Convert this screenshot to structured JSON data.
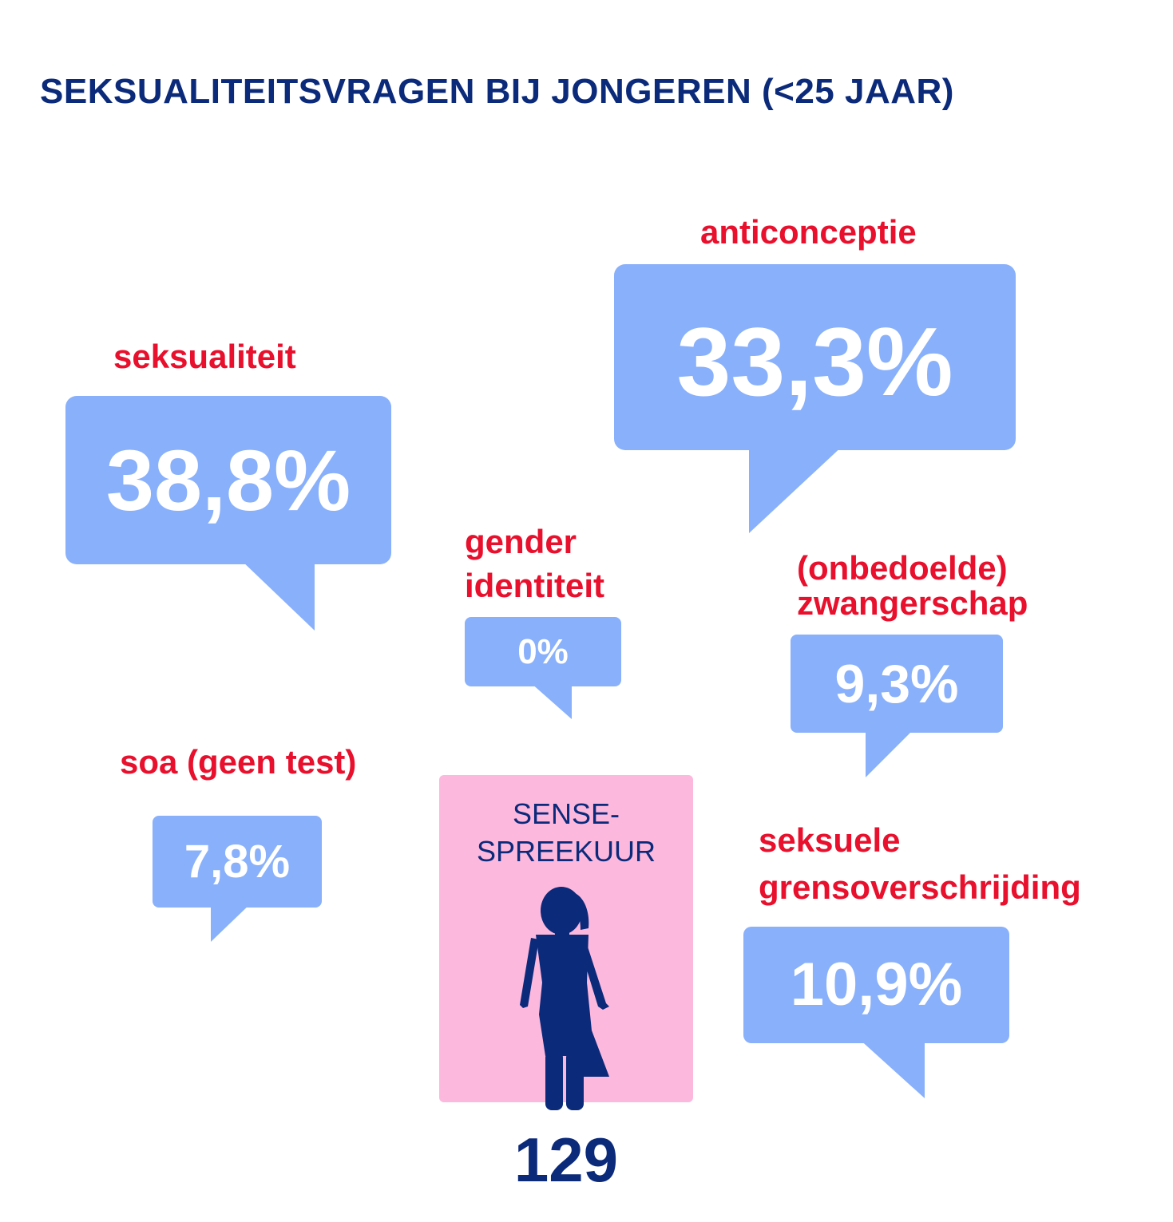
{
  "title": "SEKSUALITEITSVRAGEN BIJ JONGEREN (<25 JAAR)",
  "colors": {
    "title": "#0b2a7a",
    "label": "#e8102c",
    "bubble": "#89b0fb",
    "bubble_text": "#ffffff",
    "sense_box": "#fdb8dd"
  },
  "topics": {
    "seksualiteit": {
      "label": "seksualiteit",
      "value": "38,8%"
    },
    "anticonceptie": {
      "label": "anticonceptie",
      "value": "33,3%"
    },
    "gender_identiteit": {
      "label_line1": "gender",
      "label_line2": "identiteit",
      "value": "0%"
    },
    "zwangerschap": {
      "label_line1": "(onbedoelde)",
      "label_line2": "zwangerschap",
      "value": "9,3%"
    },
    "soa": {
      "label": "soa (geen test)",
      "value": "7,8%"
    },
    "grensoverschrijding": {
      "label_line1": "seksuele",
      "label_line2": "grensoverschrijding",
      "value": "10,9%"
    }
  },
  "sense": {
    "line1": "SENSE-",
    "line2": "SPREEKUUR",
    "icon": "person-icon",
    "count": "129"
  }
}
